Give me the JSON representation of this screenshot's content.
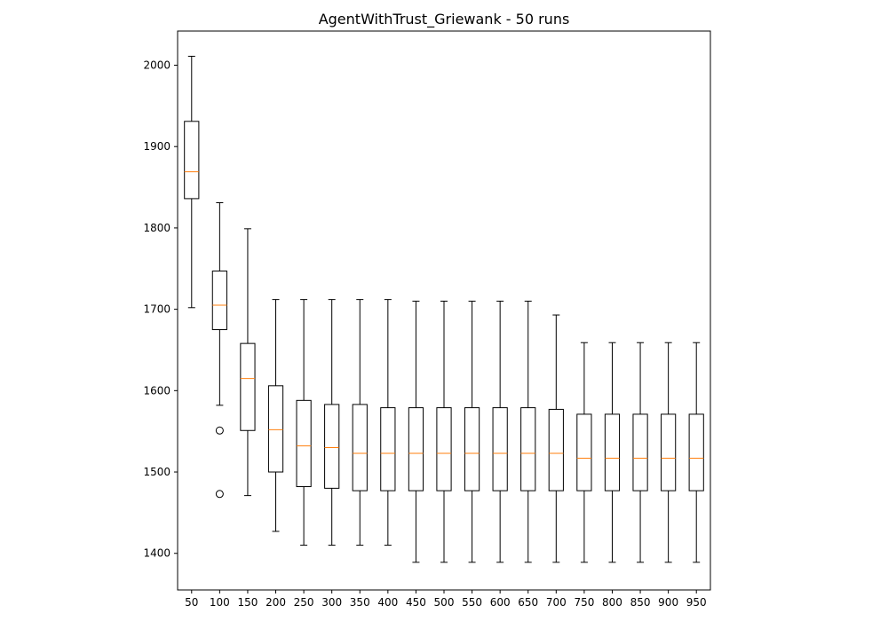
{
  "chart_data": {
    "type": "boxplot",
    "title": "AgentWithTrust_Griewank - 50 runs",
    "xlabel": "",
    "ylabel": "",
    "categories": [
      "50",
      "100",
      "150",
      "200",
      "250",
      "300",
      "350",
      "400",
      "450",
      "500",
      "550",
      "600",
      "650",
      "700",
      "750",
      "800",
      "850",
      "900",
      "950"
    ],
    "ylim": [
      1355,
      2042
    ],
    "yticks": [
      1400,
      1500,
      1600,
      1700,
      1800,
      1900,
      2000
    ],
    "grid": false,
    "legend": "none",
    "colors": {
      "box": "#000000",
      "median": "#ff7f0e",
      "flier": "#000000",
      "background": "#ffffff"
    },
    "boxes": [
      {
        "whislo": 1702,
        "q1": 1836,
        "med": 1869,
        "q3": 1931,
        "whishi": 2011,
        "fliers": []
      },
      {
        "whislo": 1582,
        "q1": 1675,
        "med": 1705,
        "q3": 1747,
        "whishi": 1831,
        "fliers": [
          1551,
          1473
        ]
      },
      {
        "whislo": 1471,
        "q1": 1551,
        "med": 1615,
        "q3": 1658,
        "whishi": 1799,
        "fliers": []
      },
      {
        "whislo": 1427,
        "q1": 1500,
        "med": 1552,
        "q3": 1606,
        "whishi": 1712,
        "fliers": []
      },
      {
        "whislo": 1410,
        "q1": 1482,
        "med": 1532,
        "q3": 1588,
        "whishi": 1712,
        "fliers": []
      },
      {
        "whislo": 1410,
        "q1": 1480,
        "med": 1530,
        "q3": 1583,
        "whishi": 1712,
        "fliers": []
      },
      {
        "whislo": 1410,
        "q1": 1477,
        "med": 1523,
        "q3": 1583,
        "whishi": 1712,
        "fliers": []
      },
      {
        "whislo": 1410,
        "q1": 1477,
        "med": 1523,
        "q3": 1579,
        "whishi": 1712,
        "fliers": []
      },
      {
        "whislo": 1389,
        "q1": 1477,
        "med": 1523,
        "q3": 1579,
        "whishi": 1710,
        "fliers": []
      },
      {
        "whislo": 1389,
        "q1": 1477,
        "med": 1523,
        "q3": 1579,
        "whishi": 1710,
        "fliers": []
      },
      {
        "whislo": 1389,
        "q1": 1477,
        "med": 1523,
        "q3": 1579,
        "whishi": 1710,
        "fliers": []
      },
      {
        "whislo": 1389,
        "q1": 1477,
        "med": 1523,
        "q3": 1579,
        "whishi": 1710,
        "fliers": []
      },
      {
        "whislo": 1389,
        "q1": 1477,
        "med": 1523,
        "q3": 1579,
        "whishi": 1710,
        "fliers": []
      },
      {
        "whislo": 1389,
        "q1": 1477,
        "med": 1523,
        "q3": 1577,
        "whishi": 1693,
        "fliers": []
      },
      {
        "whislo": 1389,
        "q1": 1477,
        "med": 1517,
        "q3": 1571,
        "whishi": 1659,
        "fliers": []
      },
      {
        "whislo": 1389,
        "q1": 1477,
        "med": 1517,
        "q3": 1571,
        "whishi": 1659,
        "fliers": []
      },
      {
        "whislo": 1389,
        "q1": 1477,
        "med": 1517,
        "q3": 1571,
        "whishi": 1659,
        "fliers": []
      },
      {
        "whislo": 1389,
        "q1": 1477,
        "med": 1517,
        "q3": 1571,
        "whishi": 1659,
        "fliers": []
      },
      {
        "whislo": 1389,
        "q1": 1477,
        "med": 1517,
        "q3": 1571,
        "whishi": 1659,
        "fliers": []
      }
    ]
  }
}
